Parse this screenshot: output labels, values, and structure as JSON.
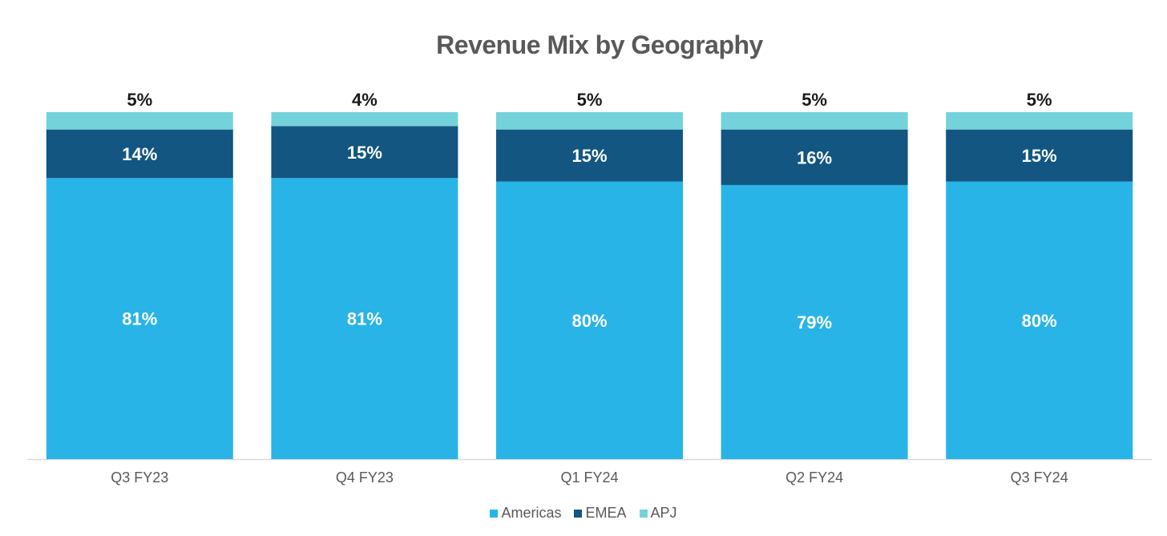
{
  "chart_data": {
    "type": "bar",
    "stacked": true,
    "title": "Revenue Mix by Geography",
    "xlabel": "",
    "ylabel": "",
    "ylim": [
      0,
      100
    ],
    "grid": false,
    "legend_position": "bottom",
    "categories": [
      "Q3 FY23",
      "Q4 FY23",
      "Q1 FY24",
      "Q2 FY24",
      "Q3 FY24"
    ],
    "series": [
      {
        "name": "Americas",
        "color": "#29b4e8",
        "values": [
          81,
          81,
          80,
          79,
          80
        ],
        "labels": [
          "81%",
          "81%",
          "80%",
          "79%",
          "80%"
        ]
      },
      {
        "name": "EMEA",
        "color": "#125681",
        "values": [
          14,
          15,
          15,
          16,
          15
        ],
        "labels": [
          "14%",
          "15%",
          "15%",
          "16%",
          "15%"
        ]
      },
      {
        "name": "APJ",
        "color": "#74d2db",
        "values": [
          5,
          4,
          5,
          5,
          5
        ],
        "labels": [
          "5%",
          "4%",
          "5%",
          "5%",
          "5%"
        ]
      }
    ]
  }
}
